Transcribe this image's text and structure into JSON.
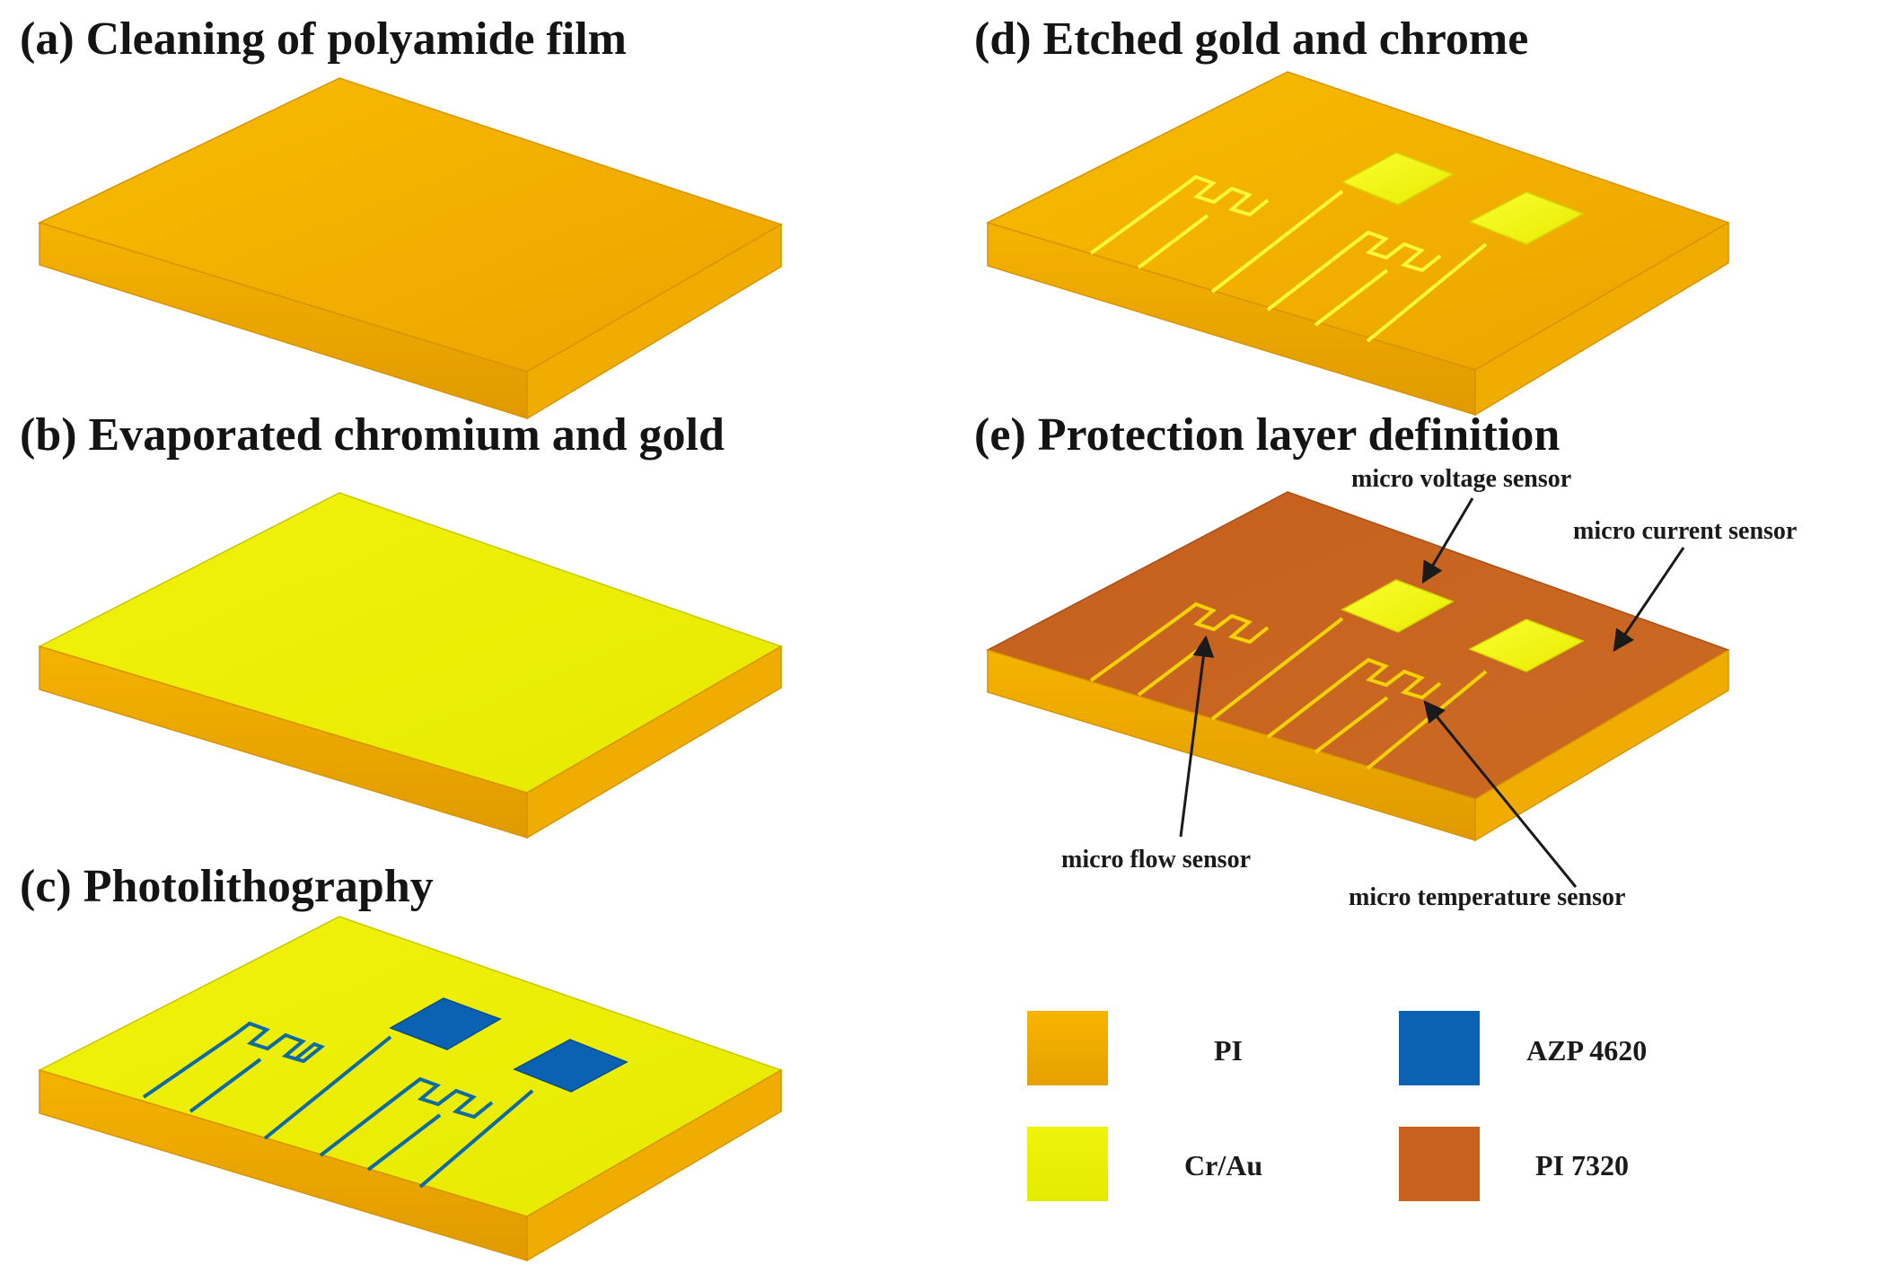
{
  "panels": {
    "a": {
      "title": "(a) Cleaning of polyamide film"
    },
    "b": {
      "title": "(b) Evaporated chromium and gold"
    },
    "c": {
      "title": "(c) Photolithography"
    },
    "d": {
      "title": "(d) Etched gold and chrome"
    },
    "e": {
      "title": "(e) Protection layer definition",
      "annotations": {
        "voltage": "micro voltage sensor",
        "current": "micro current sensor",
        "flow": "micro flow sensor",
        "temperature": "micro temperature sensor"
      }
    }
  },
  "legend": [
    {
      "label": "PI",
      "color": "#f4ac00"
    },
    {
      "label": "AZP 4620",
      "color": "#0b62b3"
    },
    {
      "label": "Cr/Au",
      "color": "#ecf200"
    },
    {
      "label": "PI 7320",
      "color": "#c8611e"
    }
  ],
  "colors": {
    "pi_top": "#f7b400",
    "pi_side": "#e6a000",
    "crau_top": "#f1f306",
    "photoresist_pattern": "#0d6aa6",
    "etched_trace": "#fbf73a",
    "pi7320_top": "#c8611e"
  }
}
